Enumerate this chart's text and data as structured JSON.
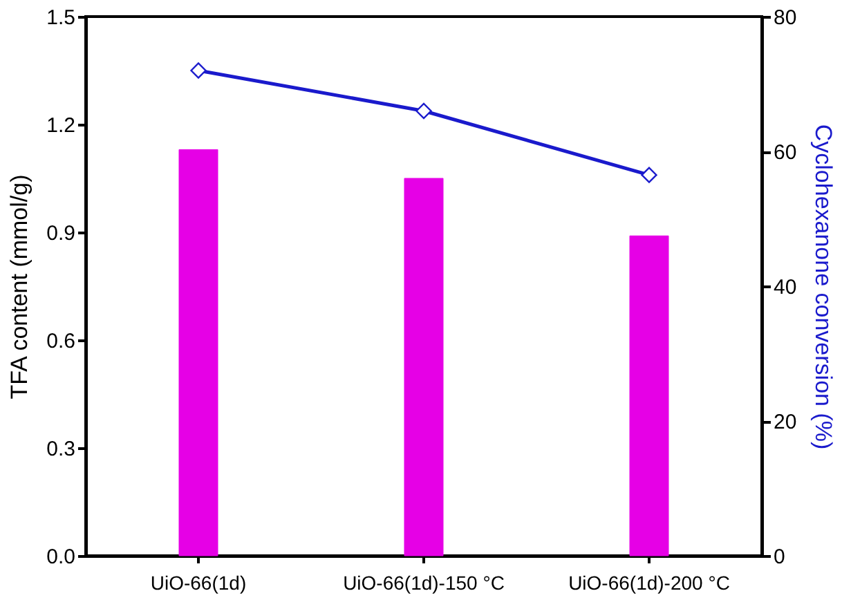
{
  "chart_data": {
    "type": "bar",
    "categories": [
      "UiO-66(1d)",
      "UiO-66(1d)-150 °C",
      "UiO-66(1d)-200 °C"
    ],
    "series": [
      {
        "color": "#e600e6",
        "values": [
          1.13,
          1.05,
          0.89
        ]
      },
      {
        "type": "line",
        "axis": "y2",
        "color": "#1a1acc",
        "marker": "diamond",
        "line_style": "solid",
        "values": [
          72,
          66,
          56.5
        ]
      }
    ],
    "ylabel": "TFA content (mmol/g)",
    "y2label": "Cyclohexanone conversion (%)",
    "ylim": [
      0,
      1.5
    ],
    "yticks": [
      {
        "value": 0,
        "label": "0.0"
      },
      0.3,
      0.6,
      0.9,
      1.2,
      1.5
    ],
    "y2lim": [
      0,
      80
    ],
    "y2ticks": [
      0,
      20,
      40,
      60,
      80
    ],
    "grid": false
  }
}
